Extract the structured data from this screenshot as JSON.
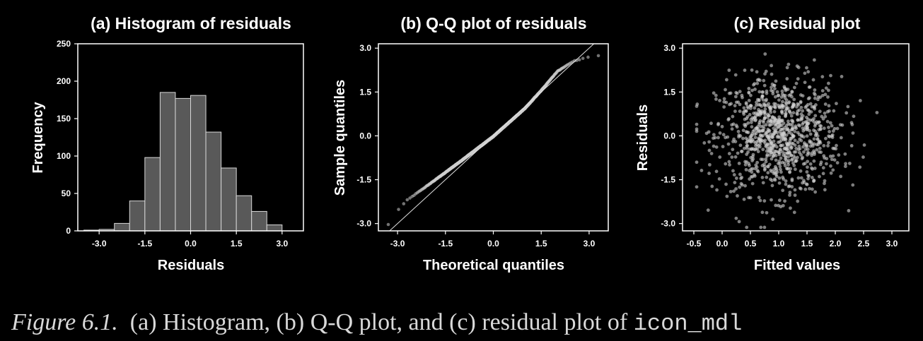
{
  "caption": {
    "label": "Figure 6.1.",
    "text": "(a) Histogram, (b) Q-Q plot, and (c) residual plot of",
    "code": "icon_mdl"
  },
  "colors": {
    "background": "#000000",
    "axes": "#ffffff",
    "bars": "#595959",
    "points": "#d0d0d0"
  },
  "chart_data": [
    {
      "type": "bar",
      "title": "(a) Histogram of residuals",
      "xlabel": "Residuals",
      "ylabel": "Frequency",
      "bin_edges": [
        -3.5,
        -3.0,
        -2.5,
        -2.0,
        -1.5,
        -1.0,
        -0.5,
        0.0,
        0.5,
        1.0,
        1.5,
        2.0,
        2.5,
        3.0
      ],
      "values": [
        1,
        2,
        10,
        40,
        98,
        185,
        177,
        181,
        132,
        84,
        47,
        26,
        8
      ],
      "xlim": [
        -3.7,
        3.7
      ],
      "ylim": [
        0,
        250
      ],
      "xticks": [
        "-3.0",
        "-1.5",
        "0.0",
        "1.5",
        "3.0"
      ],
      "yticks": [
        "0",
        "50",
        "100",
        "150",
        "200",
        "250"
      ],
      "grid": false
    },
    {
      "type": "scatter",
      "title": "(b) Q-Q plot of residuals",
      "xlabel": "Theoretical quantiles",
      "ylabel": "Sample quantiles",
      "n_points": 1000,
      "reference_line": {
        "slope": 1,
        "intercept": 0
      },
      "curve": [
        [
          -3.3,
          -3.05
        ],
        [
          -3.2,
          -2.9
        ],
        [
          -3.0,
          -2.55
        ],
        [
          -2.7,
          -2.2
        ],
        [
          -2.0,
          -1.65
        ],
        [
          -1.0,
          -0.85
        ],
        [
          0.0,
          -0.02
        ],
        [
          1.0,
          0.95
        ],
        [
          1.5,
          1.55
        ],
        [
          2.0,
          2.2
        ],
        [
          2.5,
          2.55
        ],
        [
          3.0,
          2.7
        ],
        [
          3.3,
          2.75
        ]
      ],
      "xlim": [
        -3.6,
        3.6
      ],
      "ylim": [
        -3.25,
        3.15
      ],
      "xticks": [
        "-3.0",
        "-1.5",
        "0.0",
        "1.5",
        "3.0"
      ],
      "yticks": [
        "-3.0",
        "-1.5",
        "0.0",
        "1.5",
        "3.0"
      ],
      "grid": false
    },
    {
      "type": "scatter",
      "title": "(c) Residual plot",
      "xlabel": "Fitted values",
      "ylabel": "Residuals",
      "n_points": 1000,
      "x_center": 1.0,
      "x_sd": 0.55,
      "y_center": 0.0,
      "y_sd": 1.0,
      "xlim": [
        -0.7,
        3.3
      ],
      "ylim": [
        -3.25,
        3.15
      ],
      "xticks": [
        "-0.5",
        "0.0",
        "0.5",
        "1.0",
        "1.5",
        "2.0",
        "2.5",
        "3.0"
      ],
      "yticks": [
        "-3.0",
        "-1.5",
        "0.0",
        "1.5",
        "3.0"
      ],
      "grid": false
    }
  ]
}
